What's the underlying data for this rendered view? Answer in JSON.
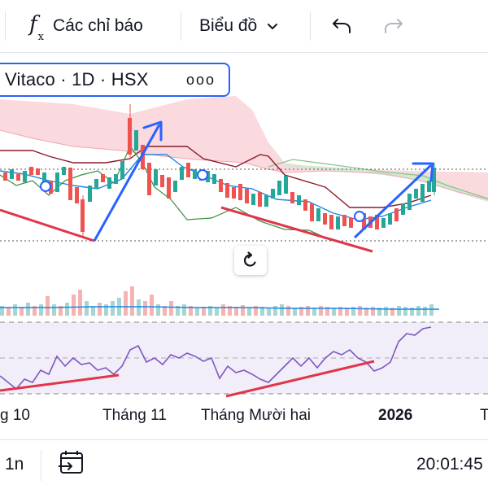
{
  "toolbar": {
    "indicators_label": "Các chỉ báo",
    "chart_type_label": "Biểu đồ",
    "icons": [
      "fx-icon",
      "chevron-down-icon",
      "undo-icon",
      "redo-icon"
    ]
  },
  "legend": {
    "symbol": "Vitaco · 1D · HSX",
    "more_icon": "ooo"
  },
  "time_axis": {
    "labels": [
      "g 10",
      "Tháng 11",
      "Tháng Mười hai",
      "2026",
      "T"
    ]
  },
  "bottom_bar": {
    "interval": "1n",
    "clock": "20:01:45"
  },
  "colors": {
    "up": "#26a69a",
    "down": "#ef5350",
    "trend_blue": "#2962ff",
    "trend_red": "#e0354a",
    "rsi": "#7e57c2",
    "cloud": "#f8c9cf",
    "cloud_green": "#c8e6c9"
  }
}
